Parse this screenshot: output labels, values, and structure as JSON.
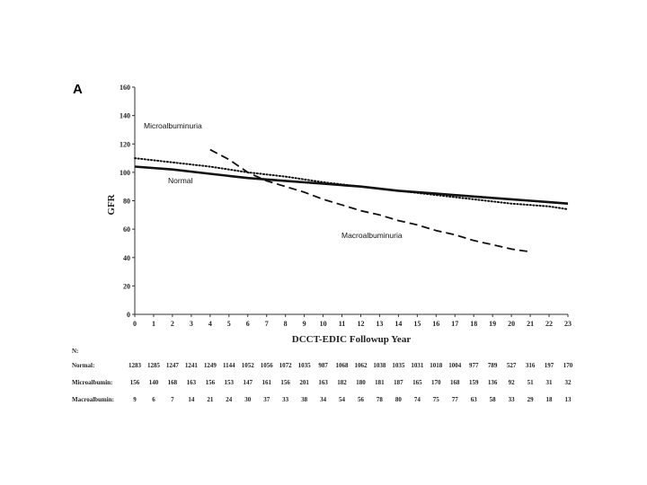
{
  "panel_label": "A",
  "chart_data": {
    "type": "line",
    "title": "",
    "xlabel": "DCCT-EDIC Followup Year",
    "ylabel": "GFR",
    "xlim": [
      0,
      23
    ],
    "ylim": [
      0,
      160
    ],
    "x_ticks": [
      "0",
      "1",
      "2",
      "3",
      "4",
      "5",
      "6",
      "7",
      "8",
      "9",
      "10",
      "11",
      "12",
      "13",
      "14",
      "15",
      "16",
      "17",
      "18",
      "19",
      "20",
      "21",
      "22",
      "23"
    ],
    "y_ticks": [
      "0",
      "20",
      "40",
      "60",
      "80",
      "100",
      "120",
      "140",
      "160"
    ],
    "series": [
      {
        "name": "Normal",
        "style": "solid",
        "x": [
          0,
          2,
          4,
          6,
          8,
          10,
          12,
          14,
          16,
          18,
          20,
          21,
          22,
          23
        ],
        "values": [
          104,
          102,
          99,
          96,
          94,
          92,
          90,
          87,
          85,
          83,
          81,
          80,
          79,
          78
        ]
      },
      {
        "name": "Microalbuminuria",
        "style": "dotted",
        "x": [
          0,
          2,
          4,
          6,
          8,
          10,
          12,
          14,
          16,
          18,
          20,
          22,
          23
        ],
        "values": [
          110,
          107,
          104,
          100,
          97,
          93,
          90,
          87,
          84,
          81,
          78,
          76,
          74
        ]
      },
      {
        "name": "Macroalbuminuria",
        "style": "dashed",
        "x": [
          4,
          5,
          6,
          7,
          8,
          9,
          10,
          11,
          12,
          13,
          14,
          15,
          16,
          17,
          18,
          19,
          20,
          21
        ],
        "values": [
          116,
          109,
          100,
          94,
          90,
          86,
          81,
          77,
          73,
          70,
          66,
          63,
          59,
          56,
          52,
          49,
          46,
          44
        ]
      }
    ],
    "annotations": [
      "Microalbuminuria",
      "Normal",
      "Macroalbuminuria"
    ]
  },
  "table": {
    "header": "N:",
    "rows": [
      {
        "label": "Normal:",
        "values": [
          "1283",
          "1285",
          "1247",
          "1241",
          "1249",
          "1144",
          "1052",
          "1056",
          "1072",
          "1035",
          "987",
          "1068",
          "1062",
          "1038",
          "1035",
          "1031",
          "1018",
          "1004",
          "977",
          "789",
          "527",
          "316",
          "197",
          "170"
        ]
      },
      {
        "label": "Microalbumin:",
        "values": [
          "156",
          "140",
          "168",
          "163",
          "156",
          "153",
          "147",
          "161",
          "156",
          "201",
          "163",
          "182",
          "180",
          "181",
          "187",
          "165",
          "170",
          "168",
          "159",
          "136",
          "92",
          "51",
          "31",
          "32"
        ]
      },
      {
        "label": "Macroalbumin:",
        "values": [
          "9",
          "6",
          "7",
          "14",
          "21",
          "24",
          "30",
          "37",
          "33",
          "38",
          "34",
          "54",
          "56",
          "78",
          "80",
          "74",
          "75",
          "77",
          "63",
          "58",
          "33",
          "29",
          "18",
          "13"
        ]
      }
    ]
  },
  "colors": {
    "line": "#111111",
    "axis": "#333333"
  }
}
